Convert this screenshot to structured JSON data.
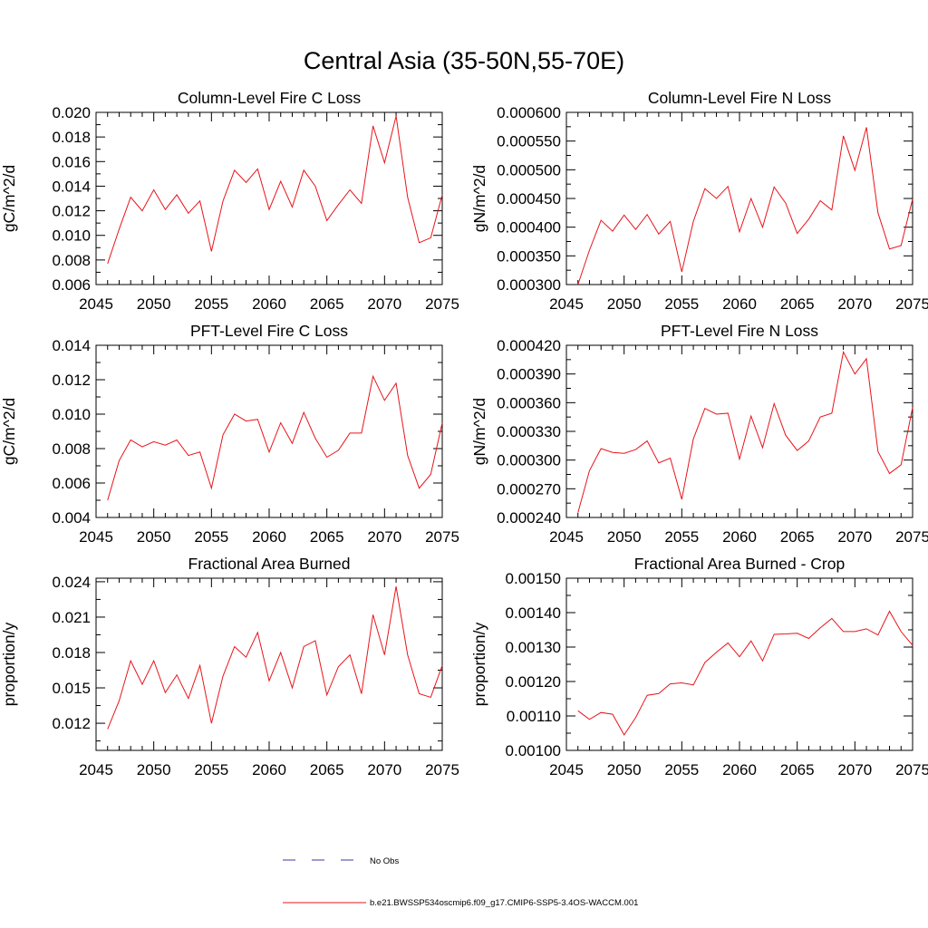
{
  "page_title": "Central Asia (35-50N,55-70E)",
  "legend": {
    "obs_label": "No Obs",
    "model_label": "b.e21.BWSSP534oscmip6.f09_g17.CMIP6-SSP5-3.4OS-WACCM.001",
    "model_color": "#e8141a",
    "obs_color": "#3a3aa0"
  },
  "chart_data": [
    {
      "type": "line",
      "title": "Column-Level Fire C Loss",
      "ylabel": "gC/m^2/d",
      "xlim": [
        2045,
        2075
      ],
      "ylim": [
        0.006,
        0.02
      ],
      "xticks": [
        "2045",
        "2050",
        "2055",
        "2060",
        "2065",
        "2070",
        "2075"
      ],
      "yticks": [
        "0.006",
        "0.008",
        "0.010",
        "0.012",
        "0.014",
        "0.016",
        "0.018",
        "0.020"
      ],
      "x": [
        2046,
        2047,
        2048,
        2049,
        2050,
        2051,
        2052,
        2053,
        2054,
        2055,
        2056,
        2057,
        2058,
        2059,
        2060,
        2061,
        2062,
        2063,
        2064,
        2065,
        2066,
        2067,
        2068,
        2069,
        2070,
        2071,
        2072,
        2073,
        2074,
        2075
      ],
      "values": [
        0.0077,
        0.0105,
        0.0131,
        0.012,
        0.0137,
        0.0121,
        0.0133,
        0.0118,
        0.0128,
        0.0087,
        0.0128,
        0.0153,
        0.0143,
        0.0154,
        0.0121,
        0.0144,
        0.0123,
        0.0153,
        0.014,
        0.0112,
        0.0125,
        0.0137,
        0.0126,
        0.0189,
        0.0159,
        0.0197,
        0.0131,
        0.0094,
        0.0098,
        0.0133
      ]
    },
    {
      "type": "line",
      "title": "Column-Level Fire N Loss",
      "ylabel": "gN/m^2/d",
      "xlim": [
        2045,
        2075
      ],
      "ylim": [
        0.0003,
        0.0006
      ],
      "xticks": [
        "2045",
        "2050",
        "2055",
        "2060",
        "2065",
        "2070",
        "2075"
      ],
      "yticks": [
        "0.000300",
        "0.000350",
        "0.000400",
        "0.000450",
        "0.000500",
        "0.000550",
        "0.000600"
      ],
      "x": [
        2046,
        2047,
        2048,
        2049,
        2050,
        2051,
        2052,
        2053,
        2054,
        2055,
        2056,
        2057,
        2058,
        2059,
        2060,
        2061,
        2062,
        2063,
        2064,
        2065,
        2066,
        2067,
        2068,
        2069,
        2070,
        2071,
        2072,
        2073,
        2074,
        2075
      ],
      "values": [
        0.0003,
        0.00036,
        0.000412,
        0.000393,
        0.000421,
        0.000396,
        0.000422,
        0.000388,
        0.00041,
        0.000322,
        0.00041,
        0.000467,
        0.00045,
        0.000471,
        0.000392,
        0.00045,
        0.0004,
        0.00047,
        0.000442,
        0.000389,
        0.000414,
        0.000446,
        0.00043,
        0.000559,
        0.000499,
        0.000574,
        0.000425,
        0.000362,
        0.000368,
        0.000449
      ]
    },
    {
      "type": "line",
      "title": "PFT-Level Fire C Loss",
      "ylabel": "gC/m^2/d",
      "xlim": [
        2045,
        2075
      ],
      "ylim": [
        0.004,
        0.014
      ],
      "xticks": [
        "2045",
        "2050",
        "2055",
        "2060",
        "2065",
        "2070",
        "2075"
      ],
      "yticks": [
        "0.004",
        "0.006",
        "0.008",
        "0.010",
        "0.012",
        "0.014"
      ],
      "x": [
        2046,
        2047,
        2048,
        2049,
        2050,
        2051,
        2052,
        2053,
        2054,
        2055,
        2056,
        2057,
        2058,
        2059,
        2060,
        2061,
        2062,
        2063,
        2064,
        2065,
        2066,
        2067,
        2068,
        2069,
        2070,
        2071,
        2072,
        2073,
        2074,
        2075
      ],
      "values": [
        0.005,
        0.0073,
        0.0085,
        0.0081,
        0.0084,
        0.0082,
        0.0085,
        0.0076,
        0.0078,
        0.0057,
        0.0088,
        0.01,
        0.0096,
        0.0097,
        0.0078,
        0.0095,
        0.0083,
        0.0101,
        0.0086,
        0.0075,
        0.0079,
        0.0089,
        0.0089,
        0.0122,
        0.0108,
        0.0118,
        0.0076,
        0.0057,
        0.0065,
        0.0095
      ]
    },
    {
      "type": "line",
      "title": "PFT-Level Fire N Loss",
      "ylabel": "gN/m^2/d",
      "xlim": [
        2045,
        2075
      ],
      "ylim": [
        0.00024,
        0.00042
      ],
      "xticks": [
        "2045",
        "2050",
        "2055",
        "2060",
        "2065",
        "2070",
        "2075"
      ],
      "yticks": [
        "0.000240",
        "0.000270",
        "0.000300",
        "0.000330",
        "0.000360",
        "0.000390",
        "0.000420"
      ],
      "x": [
        2046,
        2047,
        2048,
        2049,
        2050,
        2051,
        2052,
        2053,
        2054,
        2055,
        2056,
        2057,
        2058,
        2059,
        2060,
        2061,
        2062,
        2063,
        2064,
        2065,
        2066,
        2067,
        2068,
        2069,
        2070,
        2071,
        2072,
        2073,
        2074,
        2075
      ],
      "values": [
        0.000245,
        0.000289,
        0.000312,
        0.000308,
        0.000307,
        0.000311,
        0.00032,
        0.000297,
        0.000302,
        0.000259,
        0.000322,
        0.000354,
        0.000348,
        0.000349,
        0.000301,
        0.000346,
        0.000313,
        0.000359,
        0.000326,
        0.00031,
        0.00032,
        0.000345,
        0.000349,
        0.000413,
        0.00039,
        0.000406,
        0.000309,
        0.000286,
        0.000295,
        0.000355
      ]
    },
    {
      "type": "line",
      "title": "Fractional Area Burned",
      "ylabel": "proportion/y",
      "xlim": [
        2045,
        2075
      ],
      "ylim": [
        0.0097,
        0.0243
      ],
      "xticks": [
        "2045",
        "2050",
        "2055",
        "2060",
        "2065",
        "2070",
        "2075"
      ],
      "yticks": [
        "0.012",
        "0.015",
        "0.018",
        "0.021",
        "0.024"
      ],
      "x": [
        2046,
        2047,
        2048,
        2049,
        2050,
        2051,
        2052,
        2053,
        2054,
        2055,
        2056,
        2057,
        2058,
        2059,
        2060,
        2061,
        2062,
        2063,
        2064,
        2065,
        2066,
        2067,
        2068,
        2069,
        2070,
        2071,
        2072,
        2073,
        2074,
        2075
      ],
      "values": [
        0.0115,
        0.0139,
        0.0173,
        0.0153,
        0.0173,
        0.0146,
        0.0161,
        0.0141,
        0.0169,
        0.012,
        0.016,
        0.0185,
        0.0176,
        0.0197,
        0.0156,
        0.018,
        0.015,
        0.0185,
        0.019,
        0.0144,
        0.0168,
        0.0178,
        0.0145,
        0.0212,
        0.0178,
        0.0236,
        0.0178,
        0.0145,
        0.0142,
        0.0169
      ]
    },
    {
      "type": "line",
      "title": "Fractional Area Burned - Crop",
      "ylabel": "proportion/y",
      "xlim": [
        2045,
        2075
      ],
      "ylim": [
        0.001,
        0.0015
      ],
      "xticks": [
        "2045",
        "2050",
        "2055",
        "2060",
        "2065",
        "2070",
        "2075"
      ],
      "yticks": [
        "0.00100",
        "0.00110",
        "0.00120",
        "0.00130",
        "0.00140",
        "0.00150"
      ],
      "x": [
        2046,
        2047,
        2048,
        2049,
        2050,
        2051,
        2052,
        2053,
        2054,
        2055,
        2056,
        2057,
        2058,
        2059,
        2060,
        2061,
        2062,
        2063,
        2064,
        2065,
        2066,
        2067,
        2068,
        2069,
        2070,
        2071,
        2072,
        2073,
        2074,
        2075
      ],
      "values": [
        0.001115,
        0.00109,
        0.00111,
        0.001105,
        0.001045,
        0.001095,
        0.00116,
        0.001165,
        0.001193,
        0.001196,
        0.00119,
        0.001255,
        0.001285,
        0.001312,
        0.001272,
        0.001318,
        0.00126,
        0.001337,
        0.001338,
        0.00134,
        0.001325,
        0.001356,
        0.001383,
        0.001345,
        0.001345,
        0.001353,
        0.001335,
        0.001404,
        0.001345,
        0.001305
      ]
    }
  ]
}
